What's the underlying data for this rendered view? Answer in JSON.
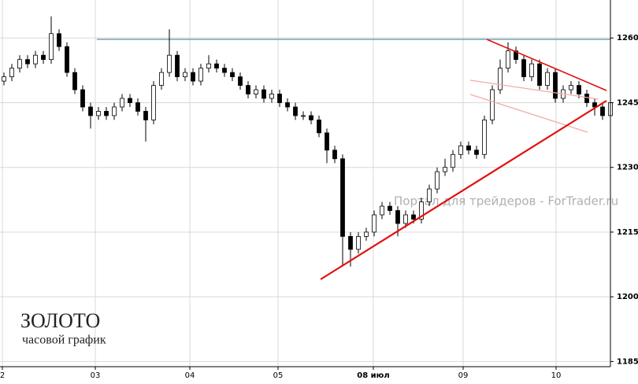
{
  "chart_data": {
    "type": "candlestick",
    "title": "ЗОЛОТО",
    "subtitle": "часовой график",
    "watermark": "Портал для трейдеров - ForTrader.ru",
    "x": [
      0,
      1,
      2,
      3,
      4,
      5,
      6,
      7,
      8,
      9,
      10,
      11,
      12,
      13,
      14,
      15,
      16,
      17,
      18,
      19,
      20,
      21,
      22,
      23,
      24,
      25,
      26,
      27,
      28,
      29,
      30,
      31,
      32,
      33,
      34,
      35,
      36,
      37,
      38,
      39,
      40,
      41,
      42,
      43,
      44,
      45,
      46,
      47,
      48,
      49,
      50,
      51,
      52,
      53,
      54,
      55,
      56,
      57,
      58,
      59,
      60,
      61,
      62,
      63,
      64,
      65,
      66,
      67,
      68,
      69,
      70,
      71,
      72,
      73,
      74,
      75,
      76,
      77
    ],
    "open": [
      1250,
      1251,
      1253,
      1255,
      1254,
      1256,
      1255,
      1261,
      1258,
      1252,
      1248,
      1244,
      1242,
      1243,
      1242,
      1244,
      1246,
      1245,
      1243,
      1241,
      1249,
      1252,
      1256,
      1251,
      1252,
      1250,
      1253,
      1254,
      1253,
      1252,
      1251,
      1249,
      1247,
      1248,
      1246,
      1247,
      1245,
      1244,
      1242,
      1242,
      1241,
      1238,
      1234,
      1232,
      1214,
      1211,
      1214,
      1215,
      1219,
      1221,
      1220,
      1217,
      1219,
      1218,
      1222,
      1225,
      1229,
      1230,
      1233,
      1235,
      1234,
      1233,
      1241,
      1248,
      1253,
      1257,
      1255,
      1251,
      1254,
      1249,
      1252,
      1246,
      1248,
      1249,
      1247,
      1245,
      1244,
      1242
    ],
    "high": [
      1252,
      1254,
      1256,
      1256,
      1257,
      1257,
      1265,
      1262,
      1259,
      1253,
      1249,
      1245,
      1244,
      1244,
      1245,
      1247,
      1247,
      1246,
      1244,
      1250,
      1253,
      1262,
      1257,
      1253,
      1253,
      1254,
      1256,
      1255,
      1254,
      1253,
      1252,
      1250,
      1249,
      1249,
      1248,
      1248,
      1246,
      1245,
      1243,
      1243,
      1242,
      1239,
      1235,
      1233,
      1215,
      1215,
      1216,
      1220,
      1222,
      1222,
      1221,
      1220,
      1220,
      1223,
      1226,
      1230,
      1232,
      1234,
      1236,
      1236,
      1235,
      1242,
      1249,
      1255,
      1259,
      1258,
      1256,
      1255,
      1255,
      1253,
      1253,
      1249,
      1250,
      1250,
      1248,
      1246,
      1245,
      1247
    ],
    "low": [
      1249,
      1250,
      1252,
      1253,
      1253,
      1254,
      1254,
      1257,
      1251,
      1247,
      1243,
      1239,
      1241,
      1241,
      1241,
      1243,
      1244,
      1242,
      1236,
      1240,
      1248,
      1251,
      1250,
      1250,
      1249,
      1249,
      1252,
      1252,
      1251,
      1250,
      1248,
      1246,
      1246,
      1245,
      1245,
      1244,
      1243,
      1241,
      1241,
      1240,
      1237,
      1231,
      1231,
      1207,
      1207,
      1210,
      1213,
      1214,
      1218,
      1219,
      1214,
      1216,
      1217,
      1217,
      1221,
      1224,
      1228,
      1229,
      1232,
      1233,
      1232,
      1232,
      1240,
      1247,
      1252,
      1254,
      1250,
      1250,
      1248,
      1248,
      1245,
      1245,
      1247,
      1246,
      1244,
      1242,
      1241,
      1241
    ],
    "close": [
      1251,
      1253,
      1255,
      1254,
      1256,
      1255,
      1261,
      1258,
      1252,
      1248,
      1244,
      1242,
      1243,
      1242,
      1244,
      1246,
      1245,
      1243,
      1241,
      1249,
      1252,
      1256,
      1251,
      1252,
      1250,
      1253,
      1254,
      1253,
      1252,
      1251,
      1249,
      1247,
      1248,
      1246,
      1247,
      1245,
      1244,
      1242,
      1242,
      1241,
      1238,
      1234,
      1232,
      1214,
      1211,
      1214,
      1215,
      1219,
      1221,
      1220,
      1217,
      1219,
      1218,
      1222,
      1225,
      1229,
      1230,
      1233,
      1235,
      1234,
      1233,
      1241,
      1248,
      1253,
      1257,
      1255,
      1251,
      1254,
      1249,
      1252,
      1246,
      1248,
      1249,
      1247,
      1245,
      1244,
      1242,
      1245
    ],
    "up_color": "#ffffff",
    "down_color": "#000000",
    "xlim": [
      0,
      77.5
    ],
    "xticks": [
      {
        "value": 0.3,
        "label": "2"
      },
      {
        "value": 12.1,
        "label": "03"
      },
      {
        "value": 24.1,
        "label": "04"
      },
      {
        "value": 35.3,
        "label": "05"
      },
      {
        "value": 47.4,
        "label": "08 июл"
      },
      {
        "value": 58.8,
        "label": "09"
      },
      {
        "value": 70.6,
        "label": "10"
      }
    ],
    "ylim": [
      1183.8,
      1268.8
    ],
    "yticks": [
      1185,
      1200,
      1215,
      1230,
      1245,
      1260
    ],
    "grid": true
  }
}
